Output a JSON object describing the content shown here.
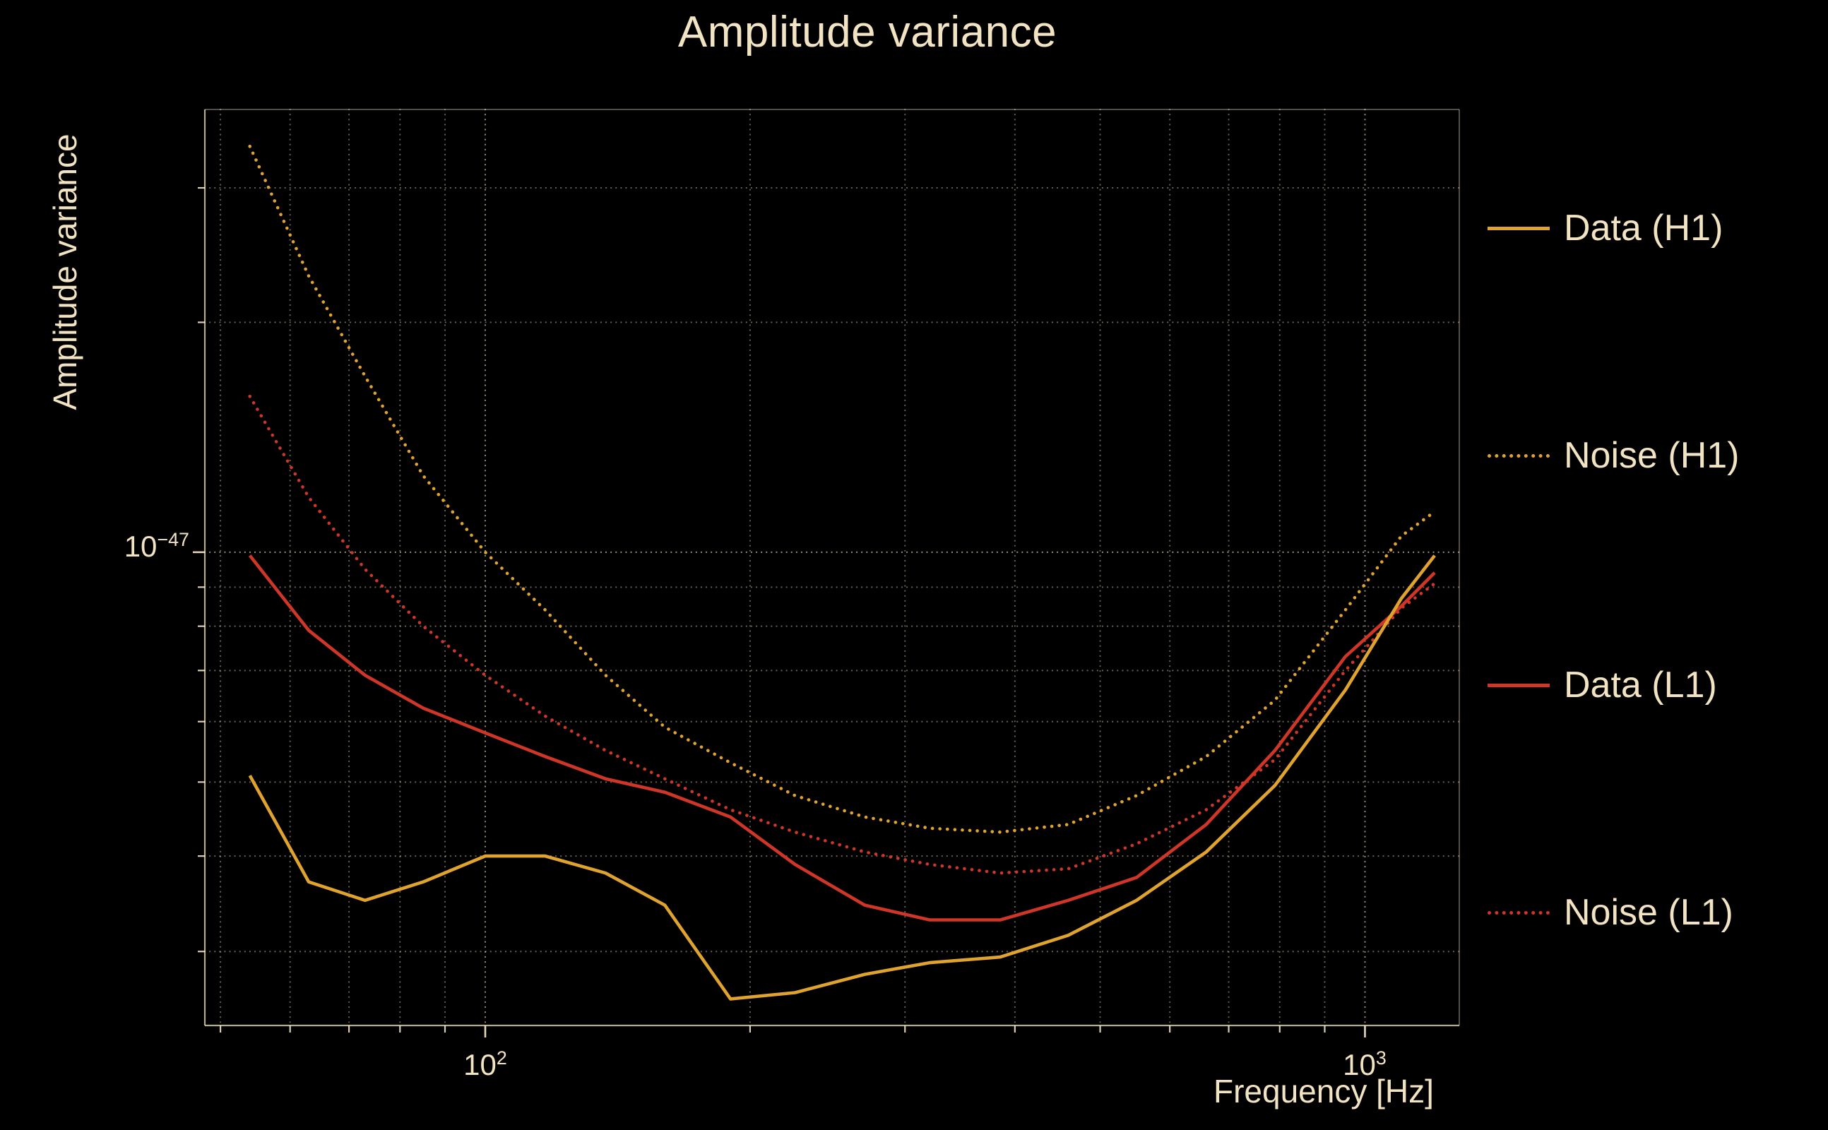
{
  "chart_data": {
    "type": "line",
    "title": "Amplitude variance",
    "xlabel": "Frequency [Hz]",
    "ylabel": "Amplitude variance",
    "xscale": "log",
    "yscale": "log",
    "background_color": "#000000",
    "text_color": "#f2e3c3",
    "grid_color": "#f2e3c3",
    "grid": "on",
    "legend_position": "right-outside",
    "xlim": [
      48,
      1280
    ],
    "y_scale": 1e-48,
    "ylim_scaled": [
      2.4,
      38
    ],
    "x": [
      54,
      63,
      73,
      85,
      100,
      117,
      137,
      160,
      190,
      225,
      270,
      320,
      385,
      460,
      550,
      660,
      790,
      950,
      1100,
      1200
    ],
    "series": [
      {
        "label": "Data (H1)",
        "color": "#dfa32e",
        "style": "solid",
        "values_scaled": [
          5.1,
          3.7,
          3.5,
          3.7,
          4.0,
          4.0,
          3.8,
          3.45,
          2.6,
          2.65,
          2.8,
          2.9,
          2.95,
          3.15,
          3.5,
          4.05,
          4.95,
          6.6,
          8.7,
          9.9
        ]
      },
      {
        "label": "Noise (H1)",
        "color": "#dfa32e",
        "style": "dotted",
        "values_scaled": [
          34,
          23,
          17,
          12.6,
          10,
          8.4,
          6.9,
          5.9,
          5.3,
          4.8,
          4.5,
          4.35,
          4.3,
          4.4,
          4.8,
          5.4,
          6.4,
          8.4,
          10.5,
          11.3
        ]
      },
      {
        "label": "Data (L1)",
        "color": "#cf3627",
        "style": "solid",
        "values_scaled": [
          9.9,
          7.9,
          6.9,
          6.25,
          5.8,
          5.4,
          5.05,
          4.85,
          4.5,
          3.9,
          3.45,
          3.3,
          3.3,
          3.5,
          3.75,
          4.4,
          5.5,
          7.3,
          8.5,
          9.4
        ]
      },
      {
        "label": "Noise (L1)",
        "color": "#cf3627",
        "style": "dotted",
        "values_scaled": [
          16,
          11.8,
          9.5,
          8.0,
          6.9,
          6.1,
          5.5,
          5.05,
          4.6,
          4.3,
          4.05,
          3.9,
          3.8,
          3.85,
          4.15,
          4.6,
          5.35,
          7.0,
          8.45,
          9.1
        ]
      }
    ],
    "x_ticks_major": [
      {
        "value": 100,
        "base": "10",
        "exp": "2"
      },
      {
        "value": 1000,
        "base": "10",
        "exp": "3"
      }
    ],
    "x_ticks_minor": [
      50,
      60,
      70,
      80,
      90,
      200,
      300,
      400,
      500,
      600,
      700,
      800,
      900
    ],
    "y_ticks_major": [
      {
        "value_scaled": 10,
        "base": "10",
        "exp": "−47"
      }
    ],
    "y_ticks_minor_scaled": [
      30,
      20,
      9,
      8,
      7,
      6,
      5,
      4,
      3
    ]
  }
}
